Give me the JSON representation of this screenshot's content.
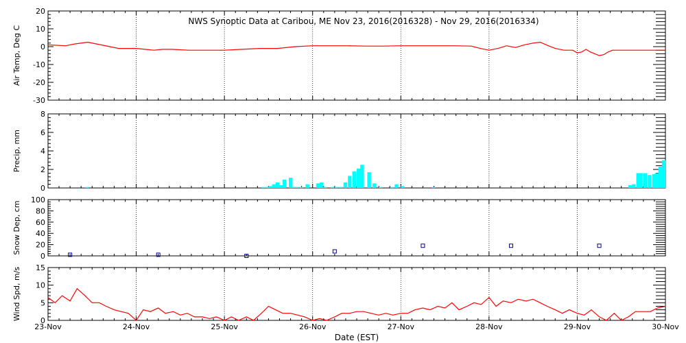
{
  "chart_data": {
    "type": "line",
    "title": "NWS Synoptic Data at Caribou, ME    Nov 23, 2016(2016328) - Nov 29, 2016(2016334)",
    "xlabel": "Date (EST)",
    "xrange": [
      0,
      7
    ],
    "xticks": [
      "23-Nov",
      "24-Nov",
      "25-Nov",
      "26-Nov",
      "27-Nov",
      "28-Nov",
      "29-Nov",
      "30-Nov"
    ],
    "grid": "vertical dotted at day boundaries",
    "colors": {
      "air_temp": "#ff0000",
      "precip": "#00ffff",
      "snow": "#000080",
      "wind": "#ff0000"
    },
    "panels": [
      {
        "id": "air_temp",
        "ylabel": "Air Temp, Deg C",
        "ylim": [
          -30,
          20
        ],
        "yticks": [
          20,
          10,
          0,
          -10,
          -20,
          -30
        ],
        "type": "line",
        "x": [
          0,
          0.2,
          0.3,
          0.45,
          0.6,
          0.7,
          0.8,
          0.9,
          1.0,
          1.1,
          1.2,
          1.3,
          1.4,
          1.6,
          1.8,
          2.0,
          2.2,
          2.4,
          2.6,
          2.8,
          3.0,
          3.2,
          3.4,
          3.6,
          3.8,
          4.0,
          4.2,
          4.4,
          4.6,
          4.8,
          4.9,
          5.0,
          5.1,
          5.2,
          5.3,
          5.4,
          5.5,
          5.58,
          5.65,
          5.75,
          5.85,
          5.95,
          6.0,
          6.05,
          6.1,
          6.15,
          6.2,
          6.25,
          6.3,
          6.35,
          6.4,
          6.5,
          6.6,
          6.7,
          6.8,
          6.9,
          7.0
        ],
        "values": [
          1,
          0.5,
          1.5,
          2.5,
          1,
          0,
          -1,
          -1,
          -1,
          -1.5,
          -2,
          -1.5,
          -1.5,
          -2,
          -2,
          -2,
          -1.5,
          -1,
          -1,
          0,
          0.5,
          0.5,
          0.5,
          0.3,
          0.3,
          0.5,
          0.5,
          0.5,
          0.5,
          0.3,
          -1,
          -2,
          -1,
          0.5,
          -0.5,
          1,
          2,
          2.5,
          1,
          -1,
          -2,
          -2,
          -3.5,
          -3,
          -1.5,
          -3,
          -4,
          -5,
          -4.5,
          -3,
          -2,
          -2,
          -2,
          -2,
          -2,
          -2,
          -2
        ]
      },
      {
        "id": "precip",
        "ylabel": "Precip, mm",
        "ylim": [
          0,
          8
        ],
        "yticks": [
          8,
          6,
          4,
          2,
          0
        ],
        "type": "bar",
        "x": [
          0.42,
          2.42,
          2.46,
          2.5,
          2.54,
          2.58,
          2.62,
          2.66,
          2.73,
          2.77,
          2.8,
          2.85,
          2.92,
          3.04,
          3.08,
          3.12,
          3.2,
          3.25,
          3.3,
          3.35,
          3.4,
          3.45,
          3.5,
          3.54,
          3.62,
          3.68,
          3.75,
          3.88,
          3.93,
          4.0,
          4.35,
          6.58,
          6.62,
          6.67,
          6.7,
          6.75,
          6.8,
          6.85,
          6.88,
          6.92,
          6.96
        ],
        "width": 0.042,
        "values": [
          0.1,
          0.1,
          0.1,
          0.2,
          0.4,
          0.6,
          0.3,
          0.9,
          1.1,
          0.1,
          0.1,
          0.1,
          0.4,
          0.5,
          0.6,
          0.1,
          0.1,
          0.1,
          0.1,
          0.6,
          1.3,
          1.8,
          2.1,
          2.5,
          1.7,
          0.5,
          0.1,
          0.1,
          0.4,
          0.2,
          0.1,
          0.3,
          0.4,
          1.6,
          1.6,
          1.6,
          1.4,
          1.5,
          1.6,
          2.3,
          3.0
        ]
      },
      {
        "id": "snow",
        "ylabel": "Snow Dep, cm",
        "ylim": [
          0,
          100
        ],
        "yticks": [
          100,
          80,
          60,
          40,
          20,
          0
        ],
        "type": "scatter",
        "x": [
          0.25,
          1.25,
          2.25,
          3.25,
          4.25,
          5.25,
          6.25
        ],
        "values": [
          2,
          2,
          0,
          8,
          18,
          18,
          18
        ]
      },
      {
        "id": "wind",
        "ylabel": "Wind Spd, m/s",
        "ylim": [
          0,
          15
        ],
        "yticks": [
          15,
          10,
          5,
          0
        ],
        "type": "line",
        "x": [
          0,
          0.08,
          0.16,
          0.25,
          0.33,
          0.42,
          0.5,
          0.58,
          0.66,
          0.75,
          0.83,
          0.91,
          1.0,
          1.08,
          1.16,
          1.25,
          1.33,
          1.42,
          1.5,
          1.58,
          1.66,
          1.75,
          1.83,
          1.91,
          2.0,
          2.08,
          2.16,
          2.25,
          2.33,
          2.42,
          2.5,
          2.58,
          2.66,
          2.75,
          2.83,
          2.91,
          3.0,
          3.08,
          3.16,
          3.25,
          3.33,
          3.42,
          3.5,
          3.58,
          3.66,
          3.75,
          3.83,
          3.91,
          4.0,
          4.08,
          4.16,
          4.25,
          4.33,
          4.42,
          4.5,
          4.58,
          4.66,
          4.75,
          4.83,
          4.91,
          5.0,
          5.08,
          5.16,
          5.25,
          5.33,
          5.42,
          5.5,
          5.58,
          5.66,
          5.75,
          5.83,
          5.91,
          6.0,
          6.08,
          6.16,
          6.25,
          6.33,
          6.42,
          6.5,
          6.58,
          6.66,
          6.75,
          6.83,
          6.91,
          7.0
        ],
        "values": [
          6.5,
          5,
          7,
          5.5,
          9,
          7,
          5,
          5,
          4,
          3,
          2.5,
          2,
          0,
          3,
          2.5,
          3.5,
          2,
          2.5,
          1.5,
          2,
          1,
          1,
          0.5,
          1,
          0,
          1,
          0,
          1,
          0,
          2,
          4,
          3,
          2,
          2,
          1.5,
          1,
          0,
          0.5,
          0,
          1,
          2,
          2,
          2.5,
          2.5,
          2,
          1.5,
          2,
          1.5,
          2,
          2,
          3,
          3.5,
          3,
          4,
          3.5,
          5,
          3,
          4,
          5,
          4.5,
          6.5,
          4,
          5.5,
          5,
          6,
          5.5,
          6,
          5,
          4,
          3,
          2,
          3,
          2,
          1.5,
          3,
          1,
          0,
          2,
          0,
          1,
          2.5,
          2.5,
          2.5,
          3.5,
          4
        ]
      }
    ]
  }
}
